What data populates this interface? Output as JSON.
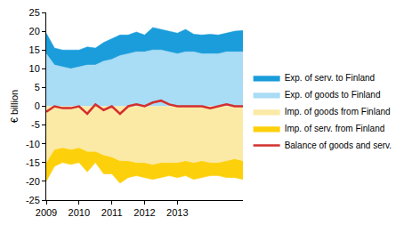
{
  "chart_data": {
    "type": "area",
    "stacked": true,
    "y_label": "€ billion",
    "categories": [
      "2009",
      null,
      null,
      null,
      "2010",
      null,
      null,
      null,
      "2011",
      null,
      null,
      null,
      "2012",
      null,
      null,
      null,
      "2013",
      null,
      null,
      null,
      null,
      null,
      null,
      null,
      null
    ],
    "ylim": [
      -25,
      25
    ],
    "yticks": [
      -25,
      -20,
      -15,
      -10,
      -5,
      0,
      5,
      10,
      15,
      20,
      25
    ],
    "grid": false,
    "legend": "right",
    "series": [
      {
        "name": "Exp. of serv. to Finland",
        "type": "area",
        "color": "#1b9ddb",
        "values": [
          5.5,
          4.5,
          4.5,
          5,
          4.5,
          4.8,
          4.5,
          5,
          5.5,
          5.5,
          5,
          5.3,
          4.5,
          6,
          5.5,
          5.5,
          5.5,
          6,
          4.7,
          5,
          5.2,
          5,
          5,
          5.5,
          5.7
        ]
      },
      {
        "name": "Exp. of goods to Finland",
        "type": "area",
        "color": "#a9dcf5",
        "values": [
          14,
          11,
          10.5,
          10,
          10.5,
          11,
          11,
          12,
          12.5,
          13.5,
          14,
          14.5,
          14.5,
          15,
          15,
          14.5,
          14,
          14.5,
          14.5,
          14,
          14,
          14,
          14.5,
          14.5,
          14.5
        ]
      },
      {
        "name": "Imp. of goods from Finland",
        "type": "area",
        "color": "#fbeaa5",
        "values": [
          -15,
          -11.5,
          -11,
          -11.5,
          -11,
          -12,
          -12,
          -13,
          -13.5,
          -14.5,
          -14.5,
          -15,
          -15,
          -15.5,
          -15,
          -15,
          -15,
          -14.5,
          -15,
          -14.5,
          -15,
          -15,
          -14.5,
          -14,
          -14.5
        ]
      },
      {
        "name": "Imp. of serv. from Finland",
        "type": "area",
        "color": "#fdd00c",
        "values": [
          -5,
          -4.5,
          -4,
          -4,
          -4,
          -5.5,
          -3,
          -5,
          -4.5,
          -6,
          -4.5,
          -3.5,
          -4,
          -4,
          -4,
          -3.5,
          -4,
          -4,
          -4.5,
          -4.5,
          -3.5,
          -3.5,
          -4.5,
          -5,
          -5
        ]
      },
      {
        "name": "Balance of goods and serv.",
        "type": "line",
        "color": "#d32f2f",
        "values": [
          -1.5,
          0,
          -0.5,
          -0.5,
          0,
          -2,
          0.5,
          -1,
          0,
          -2,
          0,
          0.5,
          0,
          1,
          1.5,
          0.5,
          0,
          0,
          0,
          0,
          -0.5,
          0,
          0.5,
          0,
          0
        ]
      }
    ]
  }
}
